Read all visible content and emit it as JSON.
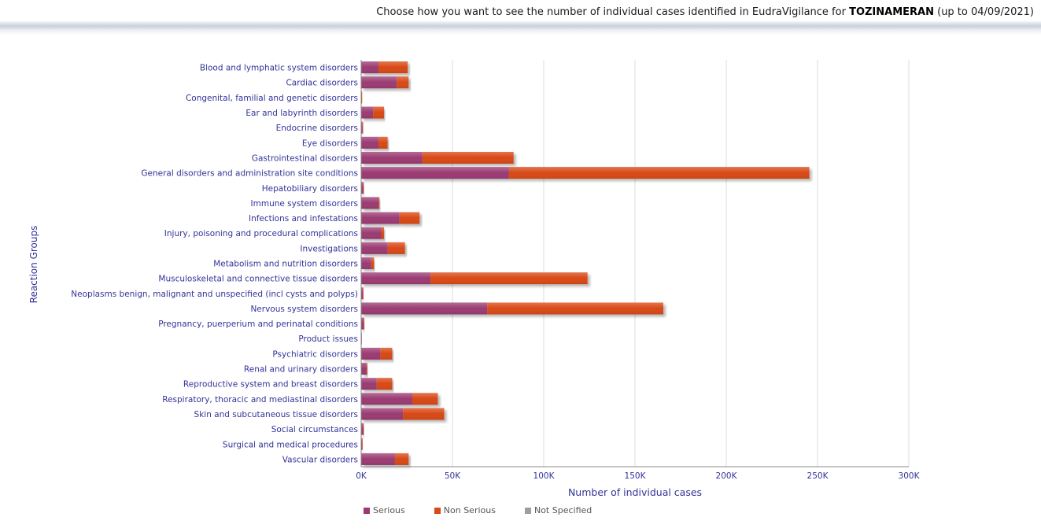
{
  "header": {
    "prefix": "Choose how you want to see the number of individual cases identified in EudraVigilance for ",
    "product": "TOZINAMERAN",
    "suffix": " (up to 04/09/2021)"
  },
  "colors": {
    "serious": "#9b3a73",
    "non_serious": "#d84a17",
    "not_specified": "#9e9e9e",
    "axis_text": "#333399",
    "grid": "#dcdcdc"
  },
  "chart_data": {
    "type": "bar",
    "orientation": "horizontal",
    "stacked": true,
    "xlabel": "Number of individual cases",
    "ylabel": "Reaction Groups",
    "xlim": [
      0,
      300000
    ],
    "xticks": [
      0,
      50000,
      100000,
      150000,
      200000,
      250000,
      300000
    ],
    "xtick_labels": [
      "0K",
      "50K",
      "100K",
      "150K",
      "200K",
      "250K",
      "300K"
    ],
    "grid": "vertical",
    "legend_position": "bottom",
    "categories": [
      "Blood and lymphatic system disorders",
      "Cardiac disorders",
      "Congenital, familial and genetic disorders",
      "Ear and labyrinth disorders",
      "Endocrine disorders",
      "Eye disorders",
      "Gastrointestinal disorders",
      "General disorders and administration site conditions",
      "Hepatobiliary disorders",
      "Immune system disorders",
      "Infections and infestations",
      "Injury, poisoning and procedural complications",
      "Investigations",
      "Metabolism and nutrition disorders",
      "Musculoskeletal and connective tissue disorders",
      "Neoplasms benign, malignant and unspecified (incl cysts and polyps)",
      "Nervous system disorders",
      "Pregnancy, puerperium and perinatal conditions",
      "Product issues",
      "Psychiatric disorders",
      "Renal and urinary disorders",
      "Reproductive system and breast disorders",
      "Respiratory, thoracic and mediastinal disorders",
      "Skin and subcutaneous tissue disorders",
      "Social circumstances",
      "Surgical and medical procedures",
      "Vascular disorders"
    ],
    "series": [
      {
        "name": "Serious",
        "values": [
          9500,
          19500,
          200,
          6500,
          700,
          9500,
          33500,
          81000,
          1100,
          9500,
          21000,
          11000,
          14500,
          5500,
          38000,
          900,
          69000,
          1400,
          100,
          10500,
          3000,
          8500,
          28000,
          23000,
          1100,
          500,
          18500
        ]
      },
      {
        "name": "Non Serious",
        "values": [
          16000,
          6500,
          100,
          6000,
          100,
          5000,
          50000,
          164500,
          200,
          500,
          11000,
          1500,
          9500,
          1500,
          86000,
          100,
          96500,
          200,
          0,
          6500,
          300,
          8500,
          14000,
          22500,
          200,
          100,
          7500
        ]
      },
      {
        "name": "Not Specified",
        "values": [
          0,
          0,
          0,
          0,
          0,
          0,
          0,
          0,
          0,
          0,
          0,
          0,
          0,
          0,
          0,
          0,
          0,
          0,
          0,
          0,
          0,
          0,
          0,
          0,
          0,
          0,
          0
        ]
      }
    ]
  }
}
